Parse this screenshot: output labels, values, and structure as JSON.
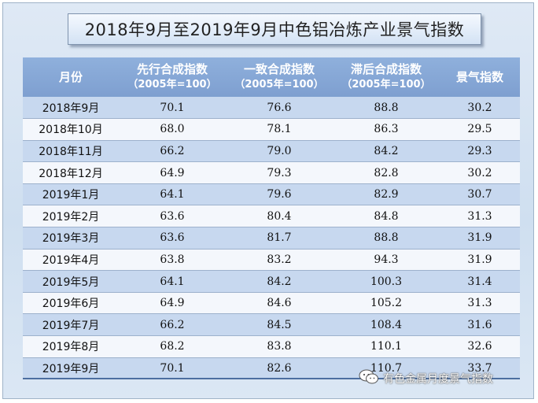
{
  "title": "2018年9月至2019年9月中色铝冶炼产业景气指数",
  "header": {
    "col_month": "月份",
    "col_leading": "先行合成指数",
    "col_coincident": "一致合成指数",
    "col_lagging": "滞后合成指数",
    "col_prosperity": "景气指数",
    "base_note": "（2005年=100）"
  },
  "watermark": {
    "text": "有色金属月度景气指数",
    "icon": "wechat-icon"
  },
  "chart_data": {
    "type": "table",
    "title": "2018年9月至2019年9月中色铝冶炼产业景气指数",
    "columns": [
      "月份",
      "先行合成指数（2005年=100）",
      "一致合成指数（2005年=100）",
      "滞后合成指数（2005年=100）",
      "景气指数"
    ],
    "rows": [
      {
        "month": "2018年9月",
        "leading": "70.1",
        "coincident": "76.6",
        "lagging": "88.8",
        "prosperity": "30.2"
      },
      {
        "month": "2018年10月",
        "leading": "68.0",
        "coincident": "78.1",
        "lagging": "86.3",
        "prosperity": "29.5"
      },
      {
        "month": "2018年11月",
        "leading": "66.2",
        "coincident": "79.0",
        "lagging": "84.2",
        "prosperity": "29.3"
      },
      {
        "month": "2018年12月",
        "leading": "64.9",
        "coincident": "79.3",
        "lagging": "82.8",
        "prosperity": "30.2"
      },
      {
        "month": "2019年1月",
        "leading": "64.1",
        "coincident": "79.6",
        "lagging": "82.9",
        "prosperity": "30.7"
      },
      {
        "month": "2019年2月",
        "leading": "63.6",
        "coincident": "80.4",
        "lagging": "84.8",
        "prosperity": "31.3"
      },
      {
        "month": "2019年3月",
        "leading": "63.6",
        "coincident": "81.7",
        "lagging": "88.8",
        "prosperity": "31.9"
      },
      {
        "month": "2019年4月",
        "leading": "63.8",
        "coincident": "83.2",
        "lagging": "94.3",
        "prosperity": "31.9"
      },
      {
        "month": "2019年5月",
        "leading": "64.1",
        "coincident": "84.2",
        "lagging": "100.3",
        "prosperity": "31.4"
      },
      {
        "month": "2019年6月",
        "leading": "64.9",
        "coincident": "84.6",
        "lagging": "105.2",
        "prosperity": "31.3"
      },
      {
        "month": "2019年7月",
        "leading": "66.2",
        "coincident": "84.5",
        "lagging": "108.4",
        "prosperity": "31.6"
      },
      {
        "month": "2019年8月",
        "leading": "68.2",
        "coincident": "83.8",
        "lagging": "110.1",
        "prosperity": "32.6"
      },
      {
        "month": "2019年9月",
        "leading": "70.1",
        "coincident": "82.6",
        "lagging": "110.7",
        "prosperity": "33.7"
      }
    ]
  }
}
